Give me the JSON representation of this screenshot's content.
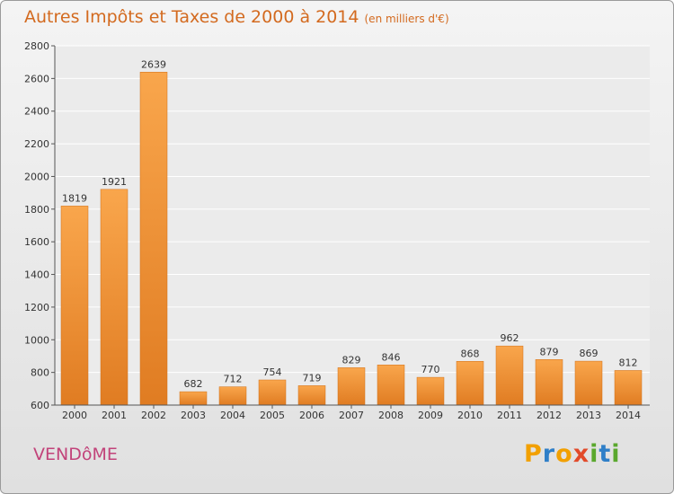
{
  "header": {
    "title": "Autres Impôts et Taxes de 2000 à 2014",
    "unit": "(en milliers d'€)"
  },
  "footer": {
    "city": "VENDôME",
    "logo": [
      "P",
      "r",
      "o",
      "x",
      "i",
      "t",
      "i"
    ]
  },
  "colors": {
    "bar_top": "#f9a64c",
    "bar_bottom": "#e07c22",
    "title": "#d36a1f",
    "city": "#c2437a",
    "logo": [
      "#f2a000",
      "#2f7fc8",
      "#f2a000",
      "#e24a2a",
      "#5aa82e",
      "#2f7fc8",
      "#5aa82e"
    ]
  },
  "chart_data": {
    "type": "bar",
    "title": "Autres Impôts et Taxes de 2000 à 2014",
    "subtitle": "(en milliers d'€)",
    "categories": [
      "2000",
      "2001",
      "2002",
      "2003",
      "2004",
      "2005",
      "2006",
      "2007",
      "2008",
      "2009",
      "2010",
      "2011",
      "2012",
      "2013",
      "2014"
    ],
    "values": [
      1819,
      1921,
      2639,
      682,
      712,
      754,
      719,
      829,
      846,
      770,
      868,
      962,
      879,
      869,
      812
    ],
    "ylim": [
      600,
      2800
    ],
    "yticks": [
      600,
      800,
      1000,
      1200,
      1400,
      1600,
      1800,
      2000,
      2200,
      2400,
      2600,
      2800
    ],
    "grid": true
  }
}
